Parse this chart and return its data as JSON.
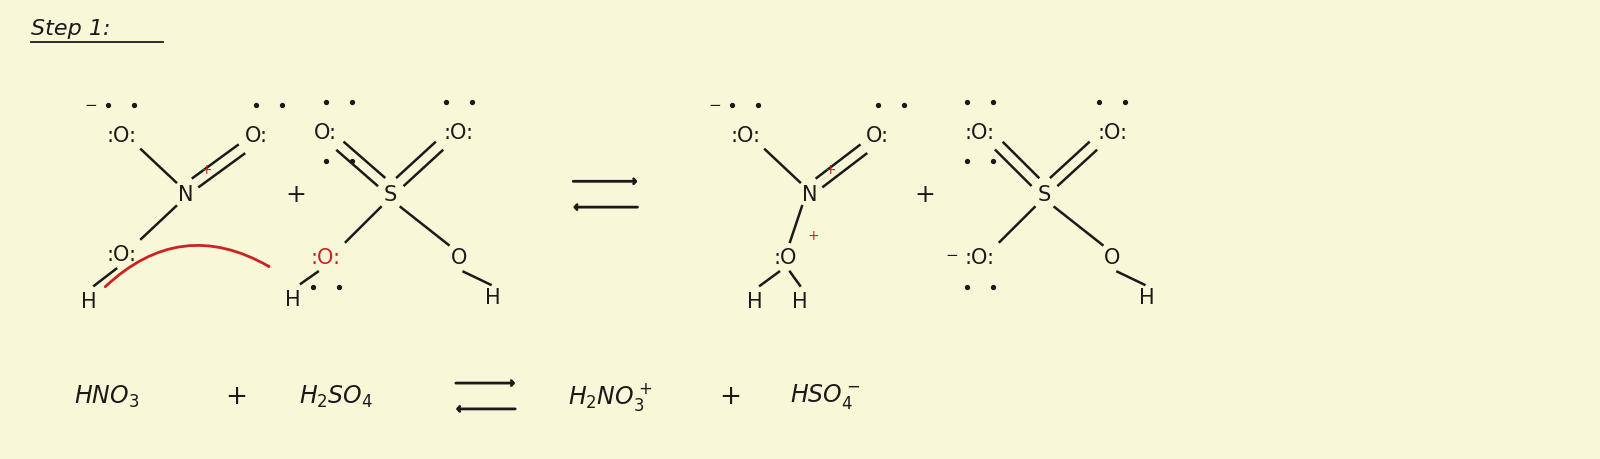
{
  "background_color": "#f8f8d8",
  "text_color": "#1a1a1a",
  "red_color": "#cc2222",
  "figsize": [
    16.0,
    4.6
  ],
  "dpi": 100,
  "xlim": [
    0,
    16
  ],
  "ylim": [
    0,
    4.6
  ]
}
